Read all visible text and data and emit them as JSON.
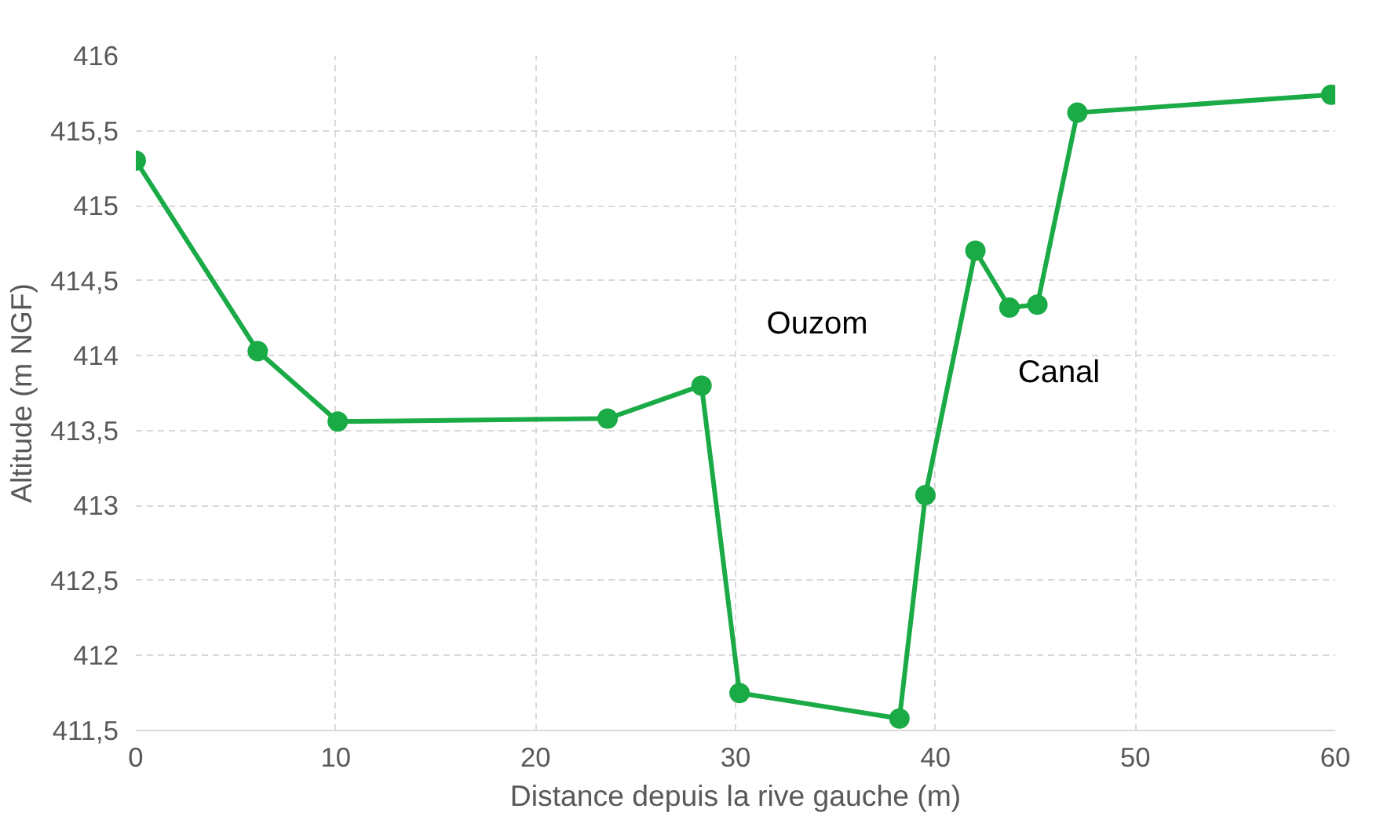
{
  "chart_data": {
    "type": "line",
    "xlabel": "Distance depuis la rive gauche (m)",
    "ylabel": "Altitude (m NGF)",
    "x": [
      0,
      6.1,
      10.1,
      23.6,
      28.3,
      30.2,
      38.2,
      39.5,
      42,
      43.7,
      45.1,
      47.1,
      59.8
    ],
    "series": [
      {
        "color": "#1aaa46",
        "values": [
          415.3,
          414.03,
          413.56,
          413.58,
          413.8,
          411.75,
          411.58,
          413.07,
          414.7,
          414.32,
          414.34,
          415.62,
          415.74
        ]
      }
    ],
    "marker": "circle",
    "line_style": "solid",
    "grid": true,
    "xlim": [
      0,
      60
    ],
    "xticks": [
      0,
      10,
      20,
      30,
      40,
      50,
      60
    ],
    "ylim": [
      411.5,
      416
    ],
    "yticks": [
      {
        "value": 411.5,
        "label": "411,5"
      },
      412,
      {
        "value": 412.5,
        "label": "412,5"
      },
      413,
      {
        "value": 413.5,
        "label": "413,5"
      },
      414,
      {
        "value": 414.5,
        "label": "414,5"
      },
      415,
      {
        "value": 415.5,
        "label": "415,5"
      },
      416
    ],
    "annotations": [
      "Ouzom",
      "Canal"
    ]
  }
}
